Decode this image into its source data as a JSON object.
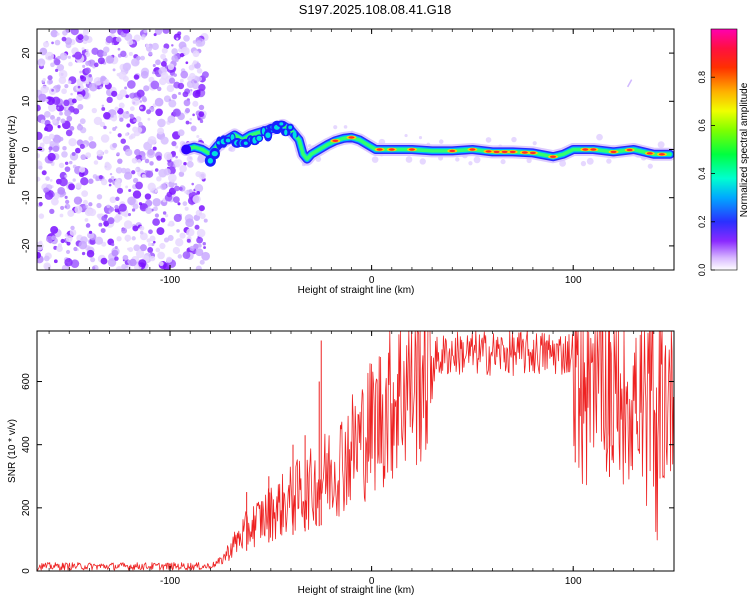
{
  "title": "S197.2025.108.08.41.G18",
  "chart_data": [
    {
      "type": "heatmap",
      "xlabel": "Height of straight line (km)",
      "ylabel": "Frequency (Hz)",
      "xlim": [
        -166,
        150
      ],
      "ylim": [
        -25,
        25
      ],
      "xticks": [
        -100,
        0,
        100
      ],
      "yticks": [
        -20,
        -10,
        0,
        10,
        20
      ],
      "colorbar": {
        "label": "Normalized spectral amplitude",
        "range": [
          0,
          1
        ],
        "ticks": [
          "0.0",
          "0.2",
          "0.4",
          "0.6",
          "0.8"
        ],
        "colors": [
          "#ffffff",
          "#c8a8ff",
          "#7a1aff",
          "#3a1aff",
          "#0050ff",
          "#00c8ff",
          "#00ff90",
          "#40ff00",
          "#d0ff00",
          "#ffd000",
          "#ff8000",
          "#ff2020",
          "#ff00a0"
        ]
      },
      "ridge": {
        "x": [
          -92,
          -88,
          -84,
          -80,
          -76,
          -72,
          -68,
          -64,
          -60,
          -56,
          -52,
          -48,
          -44,
          -40,
          -36,
          -34,
          -32,
          -30,
          -26,
          -22,
          -18,
          -14,
          -10,
          -6,
          -2,
          2,
          10,
          20,
          30,
          40,
          50,
          60,
          70,
          80,
          90,
          95,
          100,
          110,
          120,
          130,
          140,
          148
        ],
        "y": [
          0,
          0.5,
          0,
          -1,
          1,
          2,
          3,
          2,
          3,
          3.5,
          4,
          4.5,
          5,
          4,
          2,
          -1,
          -2,
          -1,
          0,
          1,
          1.8,
          2.3,
          2.5,
          2,
          1,
          0,
          0,
          0,
          -0.3,
          -0.3,
          0,
          -0.5,
          -0.5,
          -0.7,
          -1.5,
          -1,
          0,
          0,
          -0.5,
          0,
          -1,
          -1
        ]
      },
      "noise_x_range": [
        -166,
        -82
      ]
    },
    {
      "type": "line",
      "xlabel": "Height of straight line (km)",
      "ylabel": "SNR (10 * v/v)",
      "xlim": [
        -166,
        150
      ],
      "ylim": [
        0,
        760
      ],
      "xticks": [
        -100,
        0,
        100
      ],
      "yticks": [
        0,
        200,
        400,
        600
      ],
      "color": "#ee2222",
      "envelope": {
        "x": [
          -166,
          -80,
          -75,
          -70,
          -65,
          -60,
          -55,
          -50,
          -45,
          -40,
          -35,
          -30,
          -25,
          -20,
          -15,
          -10,
          -5,
          0,
          5,
          10,
          15,
          20,
          25,
          30,
          35,
          40,
          50,
          60,
          70,
          80,
          90,
          100,
          105,
          110,
          115,
          120,
          130,
          140,
          150
        ],
        "y": [
          15,
          15,
          30,
          70,
          110,
          140,
          165,
          185,
          205,
          225,
          245,
          260,
          290,
          320,
          350,
          385,
          420,
          460,
          500,
          540,
          580,
          615,
          645,
          665,
          680,
          690,
          690,
          690,
          690,
          690,
          690,
          690,
          680,
          660,
          620,
          580,
          560,
          560,
          560
        ]
      },
      "spikes": [
        {
          "x": -25,
          "y": 730
        },
        {
          "x": -26,
          "y": 600
        },
        {
          "x": -33,
          "y": 430
        },
        {
          "x": -39,
          "y": 400
        },
        {
          "x": -51,
          "y": 300
        },
        {
          "x": -62,
          "y": 250
        },
        {
          "x": 101,
          "y": 760
        },
        {
          "x": 118,
          "y": 760
        }
      ]
    }
  ]
}
